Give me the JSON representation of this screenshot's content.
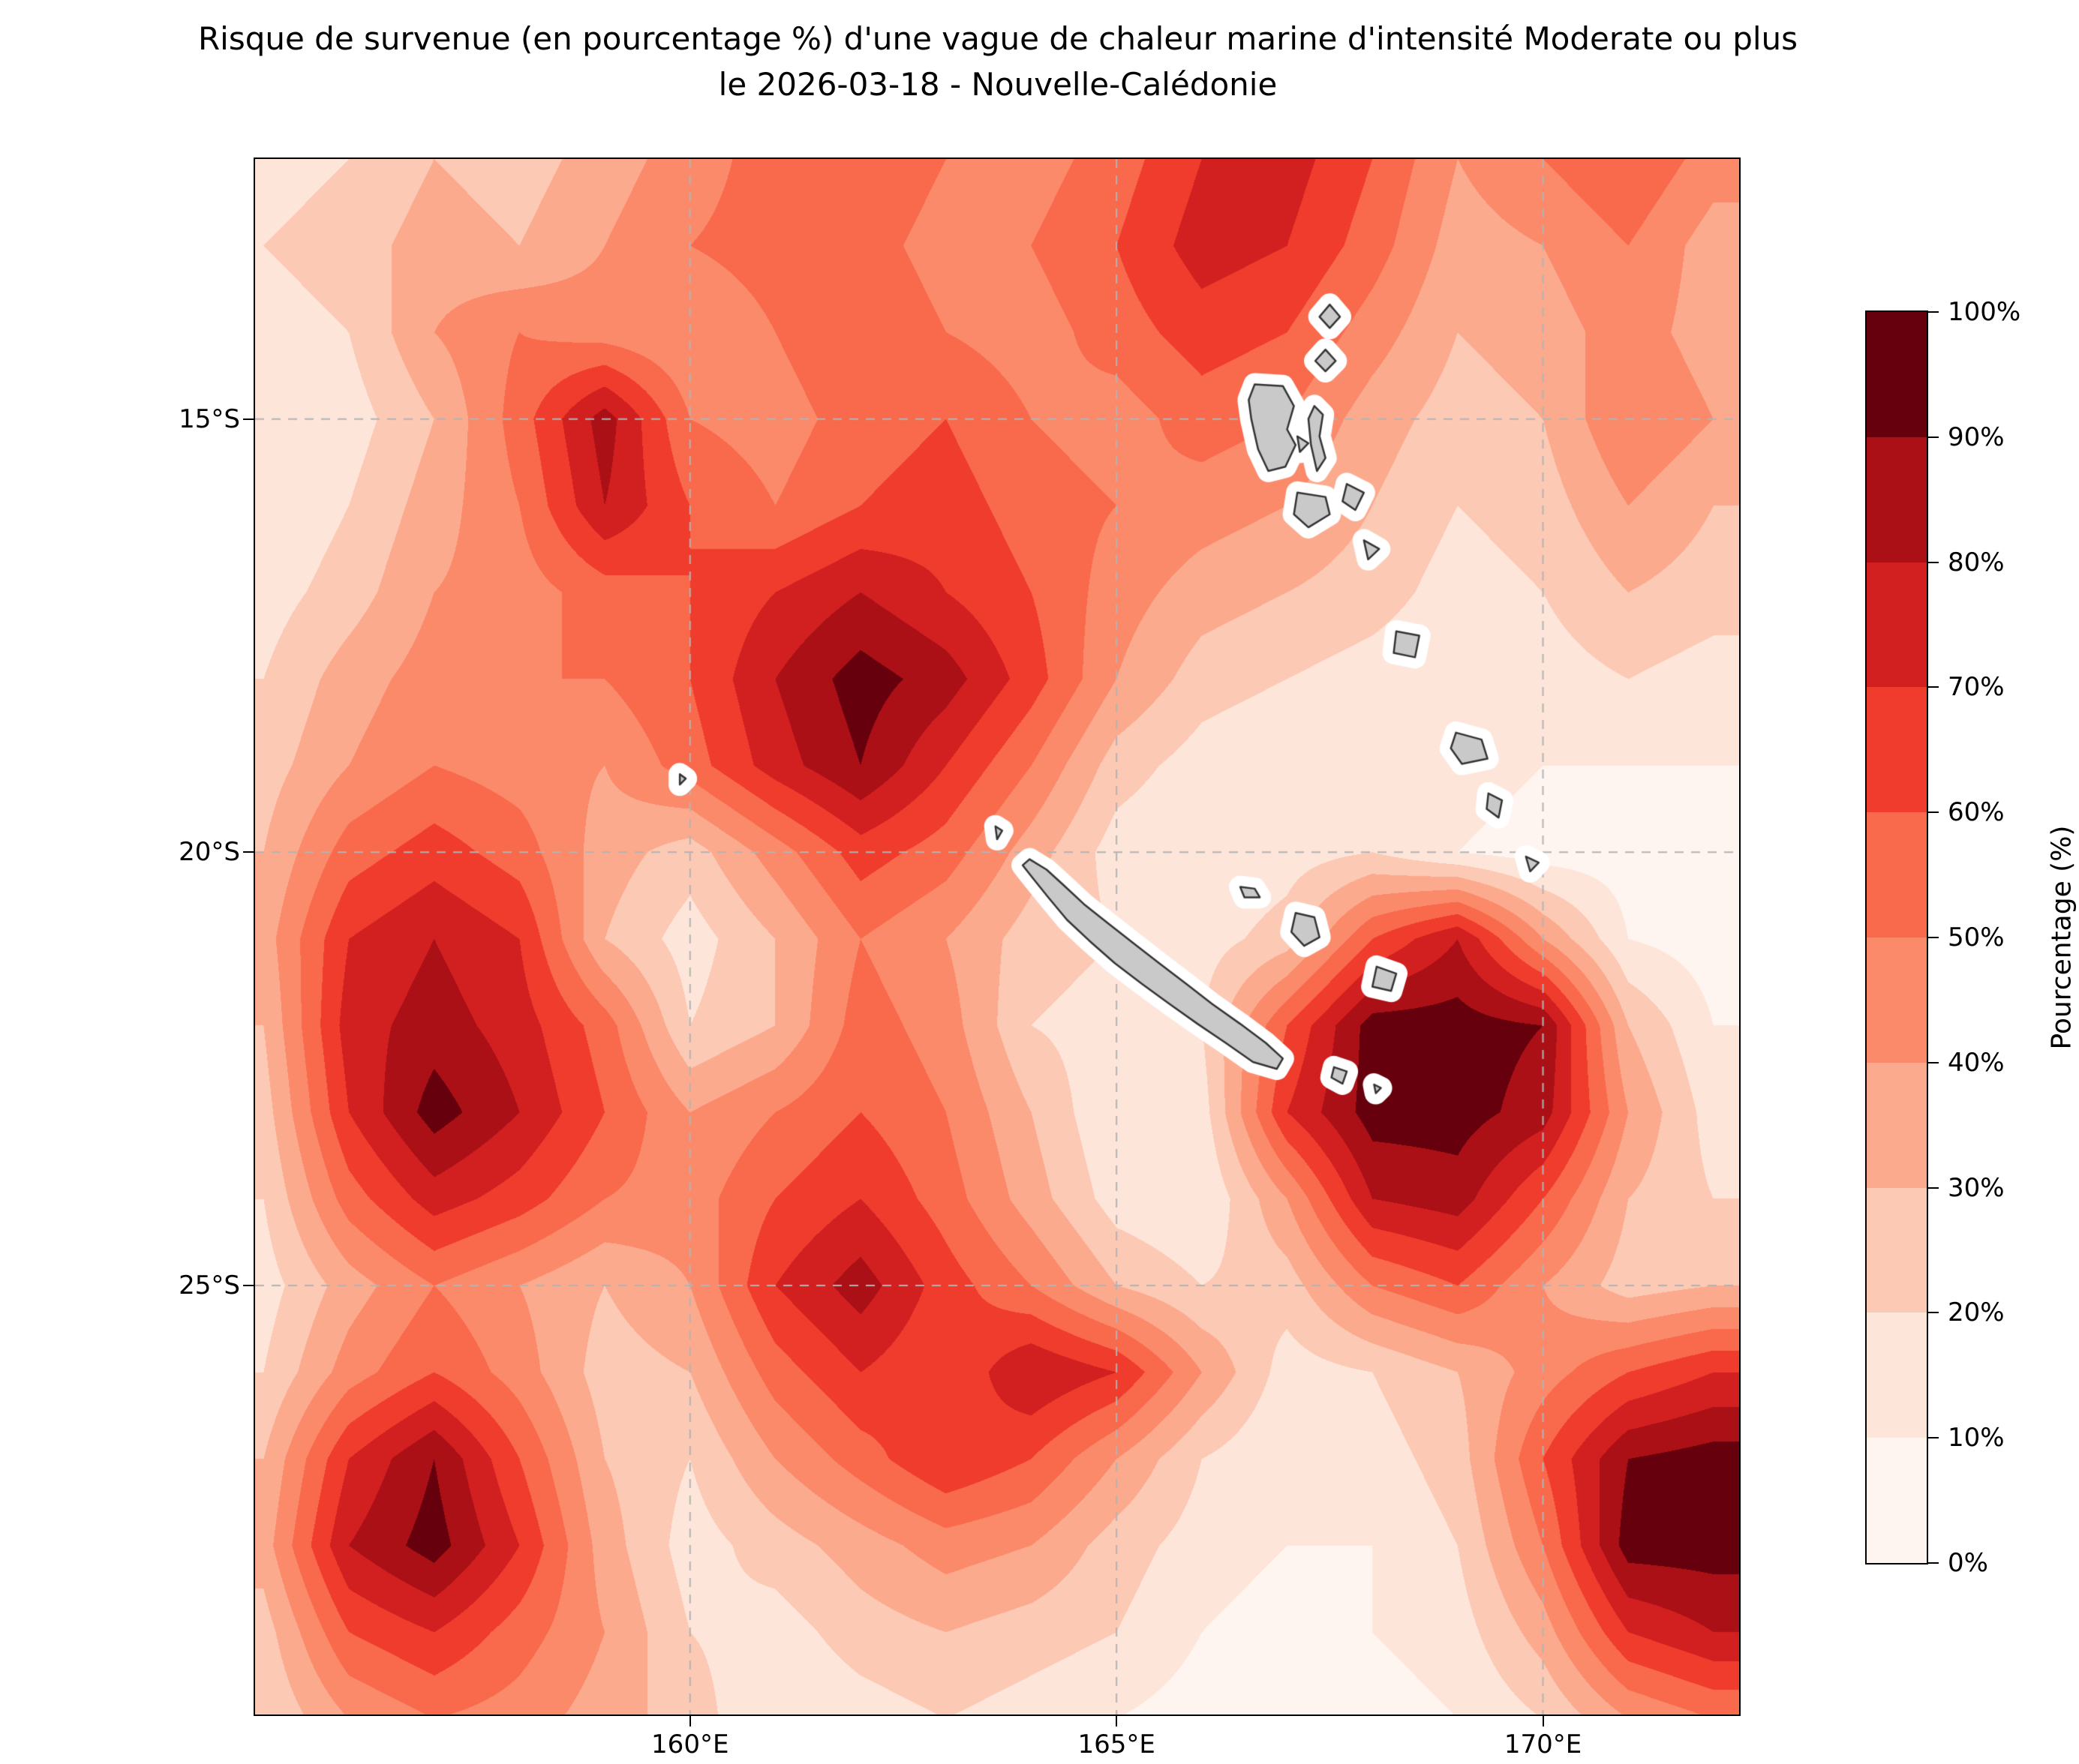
{
  "title": {
    "line1": "Risque de survenue (en pourcentage %) d'une vague de chaleur marine d'intensité Moderate ou plus",
    "line2": "le 2026-03-18 - Nouvelle-Calédonie"
  },
  "chart_data": {
    "type": "heatmap",
    "title": "Risque de survenue (en pourcentage %) d'une vague de chaleur marine d'intensité Moderate ou plus le 2026-03-18 - Nouvelle-Calédonie",
    "date": "2026-03-18",
    "region": "Nouvelle-Calédonie",
    "xlabel": "",
    "ylabel": "",
    "gridline_color": "#b3b3b3",
    "land_color": "#c9c9c9",
    "land_edge_color": "#333333",
    "axes": {
      "lon_range": [
        154.9,
        172.3
      ],
      "lat_range": [
        -12.0,
        -29.95
      ],
      "grid_dashed": true,
      "x_ticks": [
        {
          "lon": 160,
          "label": "160°E"
        },
        {
          "lon": 165,
          "label": "165°E"
        },
        {
          "lon": 170,
          "label": "170°E"
        }
      ],
      "y_ticks": [
        {
          "lat": -15,
          "label": "15°S"
        },
        {
          "lat": -20,
          "label": "20°S"
        },
        {
          "lat": -25,
          "label": "25°S"
        }
      ]
    },
    "colorbar": {
      "label": "Pourcentage (%)",
      "levels": [
        0,
        10,
        20,
        30,
        40,
        50,
        60,
        70,
        80,
        90,
        100
      ],
      "tick_labels": [
        "0%",
        "10%",
        "20%",
        "30%",
        "40%",
        "50%",
        "60%",
        "70%",
        "80%",
        "90%",
        "100%"
      ],
      "colors": [
        "#fff5f0",
        "#fee5d9",
        "#fcc9b4",
        "#fcaa8e",
        "#fb8a6b",
        "#f9694c",
        "#ef3c2c",
        "#d21f20",
        "#ab1016",
        "#67000d"
      ]
    },
    "grid": {
      "lons": [
        155,
        156,
        157,
        158,
        159,
        160,
        161,
        162,
        163,
        164,
        165,
        166,
        167,
        168,
        169,
        170,
        171,
        172
      ],
      "lats": [
        -12,
        -13,
        -14,
        -15,
        -16,
        -17,
        -18,
        -19,
        -20,
        -21,
        -22,
        -23,
        -24,
        -25,
        -26,
        -27,
        -28,
        -29,
        -30
      ],
      "values": [
        [
          15,
          20,
          30,
          25,
          35,
          45,
          55,
          60,
          50,
          45,
          55,
          70,
          75,
          60,
          40,
          50,
          60,
          45
        ],
        [
          20,
          25,
          35,
          30,
          40,
          50,
          55,
          55,
          45,
          50,
          60,
          75,
          70,
          55,
          35,
          40,
          50,
          35
        ],
        [
          15,
          20,
          40,
          50,
          45,
          40,
          50,
          60,
          50,
          45,
          55,
          65,
          60,
          45,
          30,
          35,
          45,
          35
        ],
        [
          10,
          15,
          30,
          55,
          85,
          50,
          45,
          55,
          60,
          50,
          45,
          55,
          50,
          35,
          25,
          30,
          50,
          40
        ],
        [
          10,
          20,
          35,
          50,
          80,
          60,
          50,
          60,
          65,
          55,
          50,
          45,
          40,
          30,
          20,
          25,
          40,
          30
        ],
        [
          15,
          25,
          40,
          45,
          55,
          60,
          70,
          80,
          70,
          60,
          45,
          35,
          30,
          25,
          15,
          20,
          30,
          25
        ],
        [
          20,
          35,
          45,
          50,
          50,
          60,
          80,
          95,
          85,
          65,
          40,
          25,
          20,
          15,
          10,
          15,
          20,
          15
        ],
        [
          25,
          40,
          50,
          45,
          40,
          55,
          75,
          90,
          70,
          50,
          25,
          15,
          10,
          10,
          15,
          10,
          10,
          10
        ],
        [
          30,
          55,
          65,
          55,
          35,
          25,
          45,
          65,
          55,
          35,
          15,
          10,
          15,
          20,
          10,
          5,
          5,
          5
        ],
        [
          35,
          70,
          80,
          70,
          30,
          15,
          30,
          50,
          40,
          25,
          20,
          15,
          25,
          60,
          80,
          40,
          10,
          5
        ],
        [
          30,
          75,
          85,
          75,
          55,
          20,
          30,
          55,
          45,
          20,
          15,
          20,
          60,
          95,
          95,
          90,
          30,
          10
        ],
        [
          25,
          70,
          95,
          80,
          60,
          40,
          50,
          60,
          50,
          30,
          10,
          15,
          70,
          95,
          95,
          85,
          40,
          15
        ],
        [
          20,
          55,
          75,
          65,
          50,
          45,
          60,
          70,
          55,
          35,
          15,
          10,
          40,
          80,
          85,
          60,
          30,
          20
        ],
        [
          15,
          35,
          50,
          40,
          30,
          40,
          70,
          85,
          65,
          50,
          30,
          20,
          25,
          50,
          60,
          40,
          25,
          30
        ],
        [
          20,
          45,
          60,
          45,
          25,
          30,
          55,
          70,
          60,
          80,
          70,
          40,
          15,
          20,
          30,
          45,
          60,
          70
        ],
        [
          30,
          70,
          90,
          60,
          30,
          20,
          40,
          55,
          70,
          60,
          40,
          20,
          10,
          15,
          25,
          60,
          90,
          95
        ],
        [
          35,
          80,
          95,
          70,
          35,
          15,
          25,
          35,
          45,
          40,
          25,
          15,
          10,
          10,
          20,
          50,
          95,
          95
        ],
        [
          25,
          60,
          70,
          55,
          40,
          20,
          15,
          25,
          30,
          25,
          20,
          10,
          5,
          10,
          15,
          35,
          70,
          80
        ],
        [
          20,
          40,
          50,
          45,
          35,
          25,
          10,
          15,
          20,
          15,
          10,
          5,
          5,
          5,
          10,
          20,
          40,
          50
        ]
      ]
    },
    "land_polygons": {
      "grande_terre": [
        [
          163.98,
          -20.08
        ],
        [
          164.18,
          -20.2
        ],
        [
          164.38,
          -20.38
        ],
        [
          164.62,
          -20.6
        ],
        [
          164.9,
          -20.82
        ],
        [
          165.2,
          -21.05
        ],
        [
          165.5,
          -21.28
        ],
        [
          165.82,
          -21.52
        ],
        [
          166.12,
          -21.75
        ],
        [
          166.45,
          -21.98
        ],
        [
          166.75,
          -22.2
        ],
        [
          166.95,
          -22.38
        ],
        [
          166.88,
          -22.5
        ],
        [
          166.6,
          -22.42
        ],
        [
          166.28,
          -22.2
        ],
        [
          165.95,
          -21.98
        ],
        [
          165.62,
          -21.75
        ],
        [
          165.3,
          -21.52
        ],
        [
          164.98,
          -21.28
        ],
        [
          164.68,
          -21.02
        ],
        [
          164.42,
          -20.78
        ],
        [
          164.2,
          -20.52
        ],
        [
          164.02,
          -20.3
        ],
        [
          163.9,
          -20.15
        ]
      ],
      "belep": [
        [
          163.58,
          -19.7
        ],
        [
          163.66,
          -19.75
        ],
        [
          163.6,
          -19.85
        ]
      ],
      "islet_west": [
        [
          159.88,
          -19.1
        ],
        [
          159.95,
          -19.15
        ],
        [
          159.88,
          -19.22
        ]
      ],
      "ouvea": [
        [
          166.45,
          -20.4
        ],
        [
          166.62,
          -20.42
        ],
        [
          166.68,
          -20.52
        ],
        [
          166.5,
          -20.52
        ]
      ],
      "lifou": [
        [
          167.1,
          -20.7
        ],
        [
          167.32,
          -20.75
        ],
        [
          167.38,
          -20.98
        ],
        [
          167.2,
          -21.08
        ],
        [
          167.05,
          -20.92
        ]
      ],
      "mare": [
        [
          168.05,
          -21.32
        ],
        [
          168.28,
          -21.4
        ],
        [
          168.22,
          -21.6
        ],
        [
          168.0,
          -21.55
        ]
      ],
      "ile_des_pins": [
        [
          167.55,
          -22.48
        ],
        [
          167.7,
          -22.53
        ],
        [
          167.65,
          -22.67
        ],
        [
          167.52,
          -22.6
        ]
      ],
      "islet_se": [
        [
          168.02,
          -22.68
        ],
        [
          168.1,
          -22.72
        ],
        [
          168.04,
          -22.78
        ]
      ],
      "banks_north": [
        [
          167.5,
          -13.68
        ],
        [
          167.62,
          -13.82
        ],
        [
          167.5,
          -13.95
        ],
        [
          167.38,
          -13.82
        ]
      ],
      "banks_south": [
        [
          167.45,
          -14.2
        ],
        [
          167.57,
          -14.33
        ],
        [
          167.45,
          -14.45
        ],
        [
          167.33,
          -14.33
        ]
      ],
      "espiritu_santo": [
        [
          166.62,
          -14.6
        ],
        [
          166.95,
          -14.62
        ],
        [
          167.08,
          -14.85
        ],
        [
          167.0,
          -15.12
        ],
        [
          167.1,
          -15.3
        ],
        [
          166.98,
          -15.55
        ],
        [
          166.78,
          -15.6
        ],
        [
          166.66,
          -15.35
        ],
        [
          166.58,
          -15.0
        ],
        [
          166.55,
          -14.78
        ]
      ],
      "maewo_pentecost": [
        [
          167.32,
          -14.85
        ],
        [
          167.42,
          -14.95
        ],
        [
          167.38,
          -15.2
        ],
        [
          167.45,
          -15.45
        ],
        [
          167.35,
          -15.6
        ],
        [
          167.28,
          -15.3
        ],
        [
          167.25,
          -15.0
        ]
      ],
      "ambae": [
        [
          167.12,
          -15.2
        ],
        [
          167.25,
          -15.28
        ],
        [
          167.15,
          -15.38
        ]
      ],
      "malakula": [
        [
          167.12,
          -15.85
        ],
        [
          167.45,
          -15.9
        ],
        [
          167.5,
          -16.1
        ],
        [
          167.25,
          -16.25
        ],
        [
          167.08,
          -16.1
        ]
      ],
      "ambrym": [
        [
          167.7,
          -15.75
        ],
        [
          167.9,
          -15.85
        ],
        [
          167.8,
          -16.05
        ],
        [
          167.65,
          -15.95
        ]
      ],
      "epi": [
        [
          167.9,
          -16.4
        ],
        [
          168.08,
          -16.5
        ],
        [
          167.95,
          -16.62
        ]
      ],
      "efate": [
        [
          168.28,
          -17.45
        ],
        [
          168.55,
          -17.5
        ],
        [
          168.5,
          -17.75
        ],
        [
          168.25,
          -17.7
        ]
      ],
      "erromango": [
        [
          168.98,
          -18.62
        ],
        [
          169.28,
          -18.7
        ],
        [
          169.35,
          -18.92
        ],
        [
          169.05,
          -18.98
        ],
        [
          168.92,
          -18.8
        ]
      ],
      "tanna": [
        [
          169.36,
          -19.32
        ],
        [
          169.52,
          -19.4
        ],
        [
          169.48,
          -19.6
        ],
        [
          169.34,
          -19.5
        ]
      ],
      "aneityum": [
        [
          169.8,
          -20.05
        ],
        [
          169.95,
          -20.12
        ],
        [
          169.85,
          -20.22
        ]
      ]
    }
  }
}
